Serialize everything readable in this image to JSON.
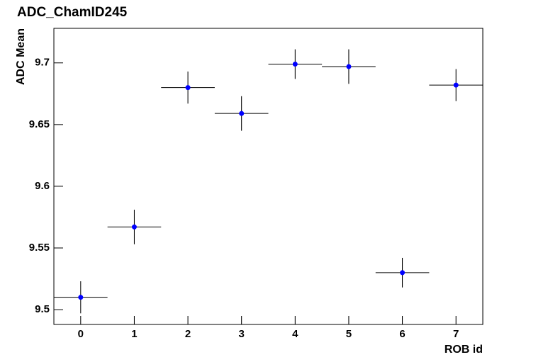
{
  "chart_data": {
    "type": "errorbar",
    "title": "ADC_ChamID245",
    "xlabel": "ROB id",
    "ylabel": "ADC Mean",
    "x": [
      0,
      1,
      2,
      3,
      4,
      5,
      6,
      7
    ],
    "series": [
      {
        "color": "#0000ff",
        "values": [
          9.51,
          9.567,
          9.68,
          9.659,
          9.699,
          9.697,
          9.53,
          9.682
        ],
        "errors": [
          0.013,
          0.014,
          0.013,
          0.014,
          0.012,
          0.014,
          0.012,
          0.013
        ]
      }
    ],
    "xerr": 0.5,
    "xlim": [
      -0.5,
      7.5
    ],
    "xticks": [
      0,
      1,
      2,
      3,
      4,
      5,
      6,
      7
    ],
    "ylim": [
      9.488,
      9.728
    ],
    "yticks": [
      9.5,
      9.55,
      9.6,
      9.65,
      9.7
    ]
  }
}
